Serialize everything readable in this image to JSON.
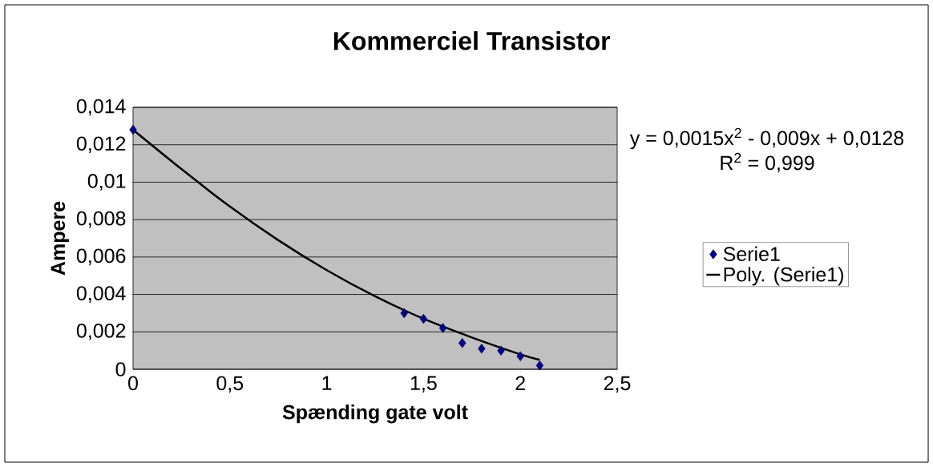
{
  "chart_data": {
    "type": "scatter",
    "title": "Kommerciel Transistor",
    "xlabel": "Spænding gate volt",
    "ylabel": "Ampere",
    "annotations": [
      "y = 0,0015x$^{2}$ - 0,009x + 0,0128",
      "R$^{2}$ = 0,999"
    ],
    "series": [
      {
        "name": "Serie1",
        "color": "#000080",
        "marker": "diamond",
        "x": [
          0,
          1.4,
          1.5,
          1.6,
          1.7,
          1.8,
          1.9,
          2.0,
          2.1
        ],
        "values": [
          0.0128,
          0.003,
          0.0027,
          0.0022,
          0.0014,
          0.0011,
          0.001,
          0.0007,
          0.0002
        ]
      },
      {
        "name": "Poly. (Serie1)",
        "type": "line",
        "color": "#000000",
        "line_style": "solid",
        "x": [
          0,
          0.25,
          0.5,
          0.75,
          1.0,
          1.25,
          1.5,
          1.75,
          2.0,
          2.1
        ],
        "values": [
          0.0128,
          0.0107,
          0.0087,
          0.0069,
          0.0053,
          0.0039,
          0.0027,
          0.0017,
          0.0008,
          0.0005
        ]
      }
    ],
    "xlim": [
      0,
      2.5
    ],
    "ylim": [
      0,
      0.014
    ],
    "xticks": [
      0,
      {
        "value": 0.5,
        "label": "0,5"
      },
      1,
      {
        "value": 1.5,
        "label": "1,5"
      },
      2,
      {
        "value": 2.5,
        "label": "2,5"
      }
    ],
    "yticks": [
      0,
      {
        "value": 0.002,
        "label": "0,002"
      },
      {
        "value": 0.004,
        "label": "0,004"
      },
      {
        "value": 0.006,
        "label": "0,006"
      },
      {
        "value": 0.008,
        "label": "0,008"
      },
      {
        "value": 0.01,
        "label": "0,01"
      },
      {
        "value": 0.012,
        "label": "0,012"
      },
      {
        "value": 0.014,
        "label": "0,014"
      }
    ],
    "grid": "y",
    "legend": "right"
  }
}
